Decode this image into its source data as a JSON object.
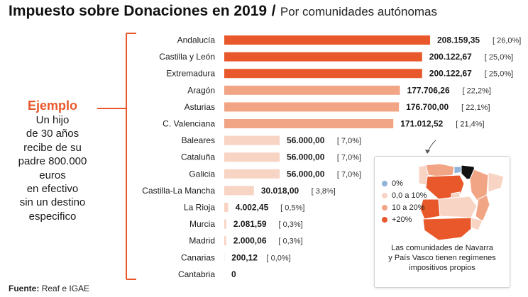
{
  "header": {
    "title_main": "Impuesto sobre Donaciones en 2019",
    "title_sep": "/",
    "title_sub": "Por comunidades autónomas"
  },
  "example": {
    "title": "Ejemplo",
    "lines": [
      "Un hijo",
      "de 30 años",
      "recibe de su",
      "padre 800.000",
      "euros",
      "en efectivo",
      "sin un destino",
      "especifico"
    ]
  },
  "legend": {
    "items": [
      {
        "label": "0%",
        "color": "#8fb3d9"
      },
      {
        "label": "0,0 a 10%",
        "color": "#f8d4c4"
      },
      {
        "label": "10 a 20%",
        "color": "#f2a585"
      },
      {
        "label": "+20%",
        "color": "#e8582a"
      }
    ],
    "note_lines": [
      "Las comunidades de Navarra",
      "y País Vasco tienen regímenes",
      "impositivos propios"
    ]
  },
  "source": {
    "label": "Fuente:",
    "text": "Reaf e IGAE"
  },
  "chart_data": {
    "type": "bar",
    "orientation": "horizontal",
    "title": "Impuesto sobre Donaciones en 2019",
    "subtitle": "Por comunidades autónomas",
    "categories": [
      "Andalucía",
      "Castilla y León",
      "Extremadura",
      "Aragón",
      "Asturias",
      "C. Valenciana",
      "Baleares",
      "Cataluña",
      "Galicia",
      "Castilla-La Mancha",
      "La Rioja",
      "Murcia",
      "Madrid",
      "Canarias",
      "Cantabria"
    ],
    "values": [
      208159.35,
      200122.67,
      200122.67,
      177706.26,
      176700.0,
      171012.52,
      56000.0,
      56000.0,
      56000.0,
      30018.0,
      4002.45,
      2081.59,
      2000.06,
      200.12,
      0
    ],
    "value_labels": [
      "208.159,35",
      "200.122,67",
      "200.122,67",
      "177.706,26",
      "176.700,00",
      "171.012,52",
      "56.000,00",
      "56.000,00",
      "56.000,00",
      "30.018,00",
      "4.002,45",
      "2.081,59",
      "2.000,06",
      "200,12",
      "0"
    ],
    "percent_labels": [
      "[ 26,0%]",
      "[ 25,0%]",
      "[ 25,0%]",
      "[ 22,2%]",
      "[ 22,1%]",
      "[ 21,4%]",
      "[ 7,0%]",
      "[ 7,0%]",
      "[ 7,0%]",
      "[ 3,8%]",
      "[ 0,5%]",
      "[ 0,3%]",
      "[ 0,3%]",
      "[ 0,0%]",
      ""
    ],
    "bar_colors": [
      "#e8582a",
      "#e8582a",
      "#e8582a",
      "#f2a585",
      "#f2a585",
      "#f2a585",
      "#f8d4c4",
      "#f8d4c4",
      "#f8d4c4",
      "#f8d4c4",
      "#f8d4c4",
      "#f8d4c4",
      "#f8d4c4",
      "#f8d4c4",
      "#f8d4c4"
    ],
    "xlim": [
      0,
      208159.35
    ],
    "grid": false
  }
}
